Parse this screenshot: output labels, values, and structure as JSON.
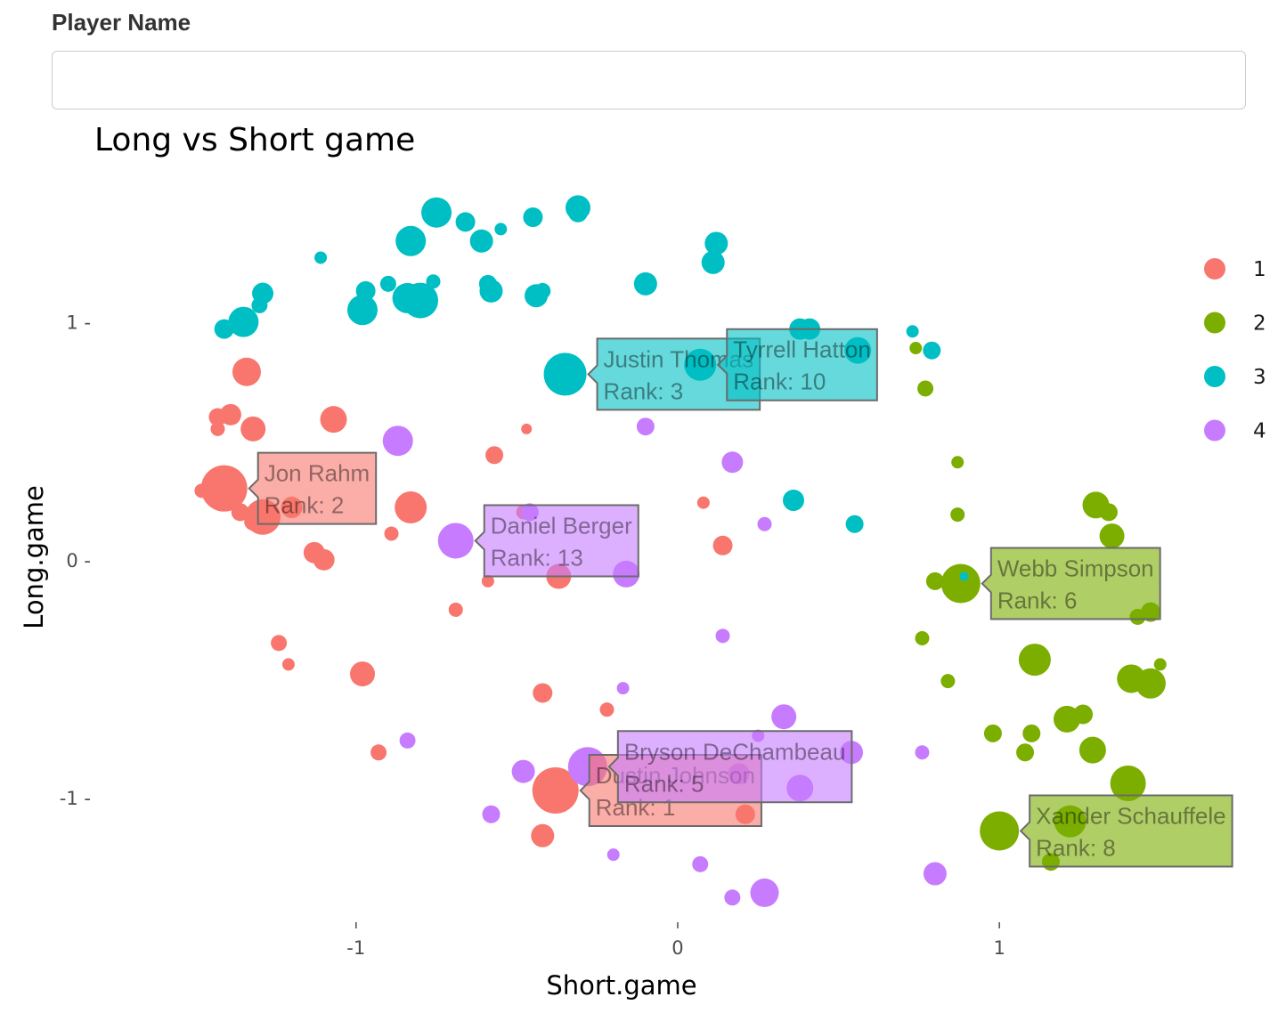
{
  "input": {
    "label": "Player Name",
    "value": ""
  },
  "chart_data": {
    "type": "scatter",
    "title": "Long vs Short game",
    "xlabel": "Short.game",
    "ylabel": "Long.game",
    "xlim": [
      -1.83,
      1.88
    ],
    "ylim": [
      -1.52,
      1.53
    ],
    "xticks": [
      -1,
      0,
      1
    ],
    "yticks": [
      -1,
      0,
      1
    ],
    "xtick_labels": [
      "-1",
      "0",
      "1"
    ],
    "ytick_labels": [
      "-1 -",
      "0 -",
      "1 -"
    ],
    "grid": false,
    "legend_position": "right",
    "groups": [
      {
        "name": "1",
        "color": "#F8766D"
      },
      {
        "name": "2",
        "color": "#7CAE00"
      },
      {
        "name": "3",
        "color": "#00BFC4"
      },
      {
        "name": "4",
        "color": "#C77CFF"
      }
    ],
    "points": [
      {
        "g": "1",
        "x": -1.34,
        "y": 0.79,
        "s": 16
      },
      {
        "g": "1",
        "x": -1.43,
        "y": 0.6,
        "s": 10
      },
      {
        "g": "1",
        "x": -1.39,
        "y": 0.61,
        "s": 12
      },
      {
        "g": "1",
        "x": -1.43,
        "y": 0.55,
        "s": 8
      },
      {
        "g": "1",
        "x": -1.32,
        "y": 0.55,
        "s": 14
      },
      {
        "g": "1",
        "x": -1.07,
        "y": 0.59,
        "s": 15
      },
      {
        "g": "1",
        "x": -1.48,
        "y": 0.29,
        "s": 8
      },
      {
        "g": "1",
        "x": -1.41,
        "y": 0.3,
        "s": 26
      },
      {
        "g": "1",
        "x": -1.36,
        "y": 0.2,
        "s": 10
      },
      {
        "g": "1",
        "x": -1.32,
        "y": 0.16,
        "s": 10
      },
      {
        "g": "1",
        "x": -1.29,
        "y": 0.18,
        "s": 20
      },
      {
        "g": "1",
        "x": -1.2,
        "y": 0.22,
        "s": 12
      },
      {
        "g": "1",
        "x": -0.83,
        "y": 0.22,
        "s": 18
      },
      {
        "g": "1",
        "x": -0.89,
        "y": 0.11,
        "s": 8
      },
      {
        "g": "1",
        "x": -1.13,
        "y": 0.03,
        "s": 12
      },
      {
        "g": "1",
        "x": -1.1,
        "y": 0.0,
        "s": 12
      },
      {
        "g": "1",
        "x": -0.57,
        "y": 0.44,
        "s": 10
      },
      {
        "g": "1",
        "x": -0.47,
        "y": 0.55,
        "s": 6
      },
      {
        "g": "1",
        "x": -0.48,
        "y": 0.2,
        "s": 8
      },
      {
        "g": "1",
        "x": -0.59,
        "y": -0.09,
        "s": 7
      },
      {
        "g": "1",
        "x": -0.37,
        "y": -0.07,
        "s": 14
      },
      {
        "g": "1",
        "x": -0.69,
        "y": -0.21,
        "s": 8
      },
      {
        "g": "1",
        "x": 0.08,
        "y": 0.24,
        "s": 7
      },
      {
        "g": "1",
        "x": 0.14,
        "y": 0.06,
        "s": 11
      },
      {
        "g": "1",
        "x": -1.24,
        "y": -0.35,
        "s": 9
      },
      {
        "g": "1",
        "x": -1.21,
        "y": -0.44,
        "s": 7
      },
      {
        "g": "1",
        "x": -0.98,
        "y": -0.48,
        "s": 14
      },
      {
        "g": "1",
        "x": -0.93,
        "y": -0.81,
        "s": 9
      },
      {
        "g": "1",
        "x": -0.42,
        "y": -0.56,
        "s": 11
      },
      {
        "g": "1",
        "x": -0.22,
        "y": -0.63,
        "s": 8
      },
      {
        "g": "1",
        "x": -0.38,
        "y": -0.97,
        "s": 26
      },
      {
        "g": "1",
        "x": -0.42,
        "y": -1.16,
        "s": 13
      },
      {
        "g": "1",
        "x": 0.21,
        "y": -1.07,
        "s": 11
      },
      {
        "g": "2",
        "x": 0.74,
        "y": 0.89,
        "s": 7
      },
      {
        "g": "2",
        "x": 0.77,
        "y": 0.72,
        "s": 9
      },
      {
        "g": "2",
        "x": 0.87,
        "y": 0.41,
        "s": 7
      },
      {
        "g": "2",
        "x": 0.87,
        "y": 0.19,
        "s": 8
      },
      {
        "g": "2",
        "x": 1.3,
        "y": 0.23,
        "s": 15
      },
      {
        "g": "2",
        "x": 1.34,
        "y": 0.2,
        "s": 10
      },
      {
        "g": "2",
        "x": 1.35,
        "y": 0.1,
        "s": 14
      },
      {
        "g": "2",
        "x": 0.8,
        "y": -0.09,
        "s": 10
      },
      {
        "g": "2",
        "x": 0.88,
        "y": -0.1,
        "s": 22
      },
      {
        "g": "2",
        "x": 1.43,
        "y": -0.24,
        "s": 9
      },
      {
        "g": "2",
        "x": 1.47,
        "y": -0.22,
        "s": 11
      },
      {
        "g": "2",
        "x": 0.76,
        "y": -0.33,
        "s": 8
      },
      {
        "g": "2",
        "x": 0.84,
        "y": -0.51,
        "s": 8
      },
      {
        "g": "2",
        "x": 1.11,
        "y": -0.42,
        "s": 18
      },
      {
        "g": "2",
        "x": 1.41,
        "y": -0.5,
        "s": 16
      },
      {
        "g": "2",
        "x": 1.47,
        "y": -0.52,
        "s": 17
      },
      {
        "g": "2",
        "x": 1.5,
        "y": -0.44,
        "s": 7
      },
      {
        "g": "2",
        "x": 0.98,
        "y": -0.73,
        "s": 10
      },
      {
        "g": "2",
        "x": 1.1,
        "y": -0.73,
        "s": 10
      },
      {
        "g": "2",
        "x": 1.08,
        "y": -0.81,
        "s": 10
      },
      {
        "g": "2",
        "x": 1.21,
        "y": -0.67,
        "s": 15
      },
      {
        "g": "2",
        "x": 1.26,
        "y": -0.65,
        "s": 11
      },
      {
        "g": "2",
        "x": 1.29,
        "y": -0.8,
        "s": 15
      },
      {
        "g": "2",
        "x": 1.4,
        "y": -0.94,
        "s": 20
      },
      {
        "g": "2",
        "x": 1.0,
        "y": -1.14,
        "s": 22
      },
      {
        "g": "2",
        "x": 1.22,
        "y": -1.1,
        "s": 18
      },
      {
        "g": "2",
        "x": 1.16,
        "y": -1.27,
        "s": 10
      },
      {
        "g": "3",
        "x": -1.11,
        "y": 1.27,
        "s": 7
      },
      {
        "g": "3",
        "x": -0.83,
        "y": 1.34,
        "s": 17
      },
      {
        "g": "3",
        "x": -0.75,
        "y": 1.46,
        "s": 17
      },
      {
        "g": "3",
        "x": -0.66,
        "y": 1.42,
        "s": 11
      },
      {
        "g": "3",
        "x": -0.61,
        "y": 1.34,
        "s": 13
      },
      {
        "g": "3",
        "x": -0.55,
        "y": 1.39,
        "s": 7
      },
      {
        "g": "3",
        "x": -0.45,
        "y": 1.44,
        "s": 11
      },
      {
        "g": "3",
        "x": -0.31,
        "y": 1.48,
        "s": 14
      },
      {
        "g": "3",
        "x": -0.31,
        "y": 1.46,
        "s": 11
      },
      {
        "g": "3",
        "x": 0.12,
        "y": 1.33,
        "s": 13
      },
      {
        "g": "3",
        "x": 0.11,
        "y": 1.25,
        "s": 13
      },
      {
        "g": "3",
        "x": -0.1,
        "y": 1.16,
        "s": 13
      },
      {
        "g": "3",
        "x": -1.29,
        "y": 1.12,
        "s": 12
      },
      {
        "g": "3",
        "x": -1.3,
        "y": 1.07,
        "s": 9
      },
      {
        "g": "3",
        "x": -1.35,
        "y": 1.0,
        "s": 17
      },
      {
        "g": "3",
        "x": -1.41,
        "y": 0.97,
        "s": 11
      },
      {
        "g": "3",
        "x": -0.97,
        "y": 1.13,
        "s": 11
      },
      {
        "g": "3",
        "x": -0.9,
        "y": 1.16,
        "s": 9
      },
      {
        "g": "3",
        "x": -0.84,
        "y": 1.1,
        "s": 17
      },
      {
        "g": "3",
        "x": -0.8,
        "y": 1.09,
        "s": 20
      },
      {
        "g": "3",
        "x": -0.78,
        "y": 1.06,
        "s": 9
      },
      {
        "g": "3",
        "x": -0.76,
        "y": 1.17,
        "s": 8
      },
      {
        "g": "3",
        "x": -0.98,
        "y": 1.05,
        "s": 17
      },
      {
        "g": "3",
        "x": -0.59,
        "y": 1.16,
        "s": 10
      },
      {
        "g": "3",
        "x": -0.58,
        "y": 1.13,
        "s": 13
      },
      {
        "g": "3",
        "x": -0.44,
        "y": 1.11,
        "s": 13
      },
      {
        "g": "3",
        "x": -0.42,
        "y": 1.13,
        "s": 9
      },
      {
        "g": "3",
        "x": 0.38,
        "y": 0.97,
        "s": 12
      },
      {
        "g": "3",
        "x": 0.41,
        "y": 0.97,
        "s": 12
      },
      {
        "g": "3",
        "x": 0.73,
        "y": 0.96,
        "s": 7
      },
      {
        "g": "3",
        "x": 0.79,
        "y": 0.88,
        "s": 10
      },
      {
        "g": "3",
        "x": 0.56,
        "y": 0.88,
        "s": 15
      },
      {
        "g": "3",
        "x": -0.35,
        "y": 0.78,
        "s": 24
      },
      {
        "g": "3",
        "x": 0.07,
        "y": 0.82,
        "s": 18
      },
      {
        "g": "3",
        "x": 0.36,
        "y": 0.25,
        "s": 12
      },
      {
        "g": "3",
        "x": 0.55,
        "y": 0.15,
        "s": 10
      },
      {
        "g": "3",
        "x": 0.89,
        "y": -0.07,
        "s": 5
      },
      {
        "g": "4",
        "x": -0.87,
        "y": 0.5,
        "s": 17
      },
      {
        "g": "4",
        "x": -0.1,
        "y": 0.56,
        "s": 10
      },
      {
        "g": "4",
        "x": 0.17,
        "y": 0.41,
        "s": 12
      },
      {
        "g": "4",
        "x": -0.46,
        "y": 0.2,
        "s": 10
      },
      {
        "g": "4",
        "x": 0.27,
        "y": 0.15,
        "s": 8
      },
      {
        "g": "4",
        "x": -0.69,
        "y": 0.08,
        "s": 20
      },
      {
        "g": "4",
        "x": -0.16,
        "y": -0.06,
        "s": 15
      },
      {
        "g": "4",
        "x": 0.14,
        "y": -0.32,
        "s": 8
      },
      {
        "g": "4",
        "x": -0.17,
        "y": -0.54,
        "s": 7
      },
      {
        "g": "4",
        "x": -0.84,
        "y": -0.76,
        "s": 9
      },
      {
        "g": "4",
        "x": 0.33,
        "y": -0.66,
        "s": 14
      },
      {
        "g": "4",
        "x": 0.25,
        "y": -0.74,
        "s": 7
      },
      {
        "g": "4",
        "x": 0.54,
        "y": -0.81,
        "s": 13
      },
      {
        "g": "4",
        "x": 0.76,
        "y": -0.81,
        "s": 8
      },
      {
        "g": "4",
        "x": -0.48,
        "y": -0.89,
        "s": 13
      },
      {
        "g": "4",
        "x": -0.28,
        "y": -0.87,
        "s": 22
      },
      {
        "g": "4",
        "x": 0.19,
        "y": -0.9,
        "s": 12
      },
      {
        "g": "4",
        "x": 0.38,
        "y": -0.96,
        "s": 15
      },
      {
        "g": "4",
        "x": -0.58,
        "y": -1.07,
        "s": 10
      },
      {
        "g": "4",
        "x": -0.2,
        "y": -1.24,
        "s": 7
      },
      {
        "g": "4",
        "x": 0.07,
        "y": -1.28,
        "s": 9
      },
      {
        "g": "4",
        "x": 0.17,
        "y": -1.42,
        "s": 9
      },
      {
        "g": "4",
        "x": 0.27,
        "y": -1.4,
        "s": 16
      },
      {
        "g": "4",
        "x": 0.8,
        "y": -1.32,
        "s": 13
      }
    ],
    "annotations": [
      {
        "g": "3",
        "player": "Justin Thomas",
        "rank_text": "Rank: 3",
        "x": -0.35,
        "y": 0.78
      },
      {
        "g": "3",
        "player": "Tyrrell Hatton",
        "rank_text": "Rank: 10",
        "x": 0.07,
        "y": 0.82
      },
      {
        "g": "1",
        "player": "Jon Rahm",
        "rank_text": "Rank: 2",
        "x": -1.41,
        "y": 0.3
      },
      {
        "g": "4",
        "player": "Daniel Berger",
        "rank_text": "Rank: 13",
        "x": -0.69,
        "y": 0.08
      },
      {
        "g": "2",
        "player": "Webb Simpson",
        "rank_text": "Rank: 6",
        "x": 0.88,
        "y": -0.1
      },
      {
        "g": "1",
        "player": "Dustin Johnson",
        "rank_text": "Rank: 1",
        "x": -0.38,
        "y": -0.97
      },
      {
        "g": "4",
        "player": "Bryson DeChambeau",
        "rank_text": "Rank: 5",
        "x": -0.28,
        "y": -0.87
      },
      {
        "g": "2",
        "player": "Xander Schauffele",
        "rank_text": "Rank: 8",
        "x": 1.0,
        "y": -1.14
      }
    ]
  }
}
